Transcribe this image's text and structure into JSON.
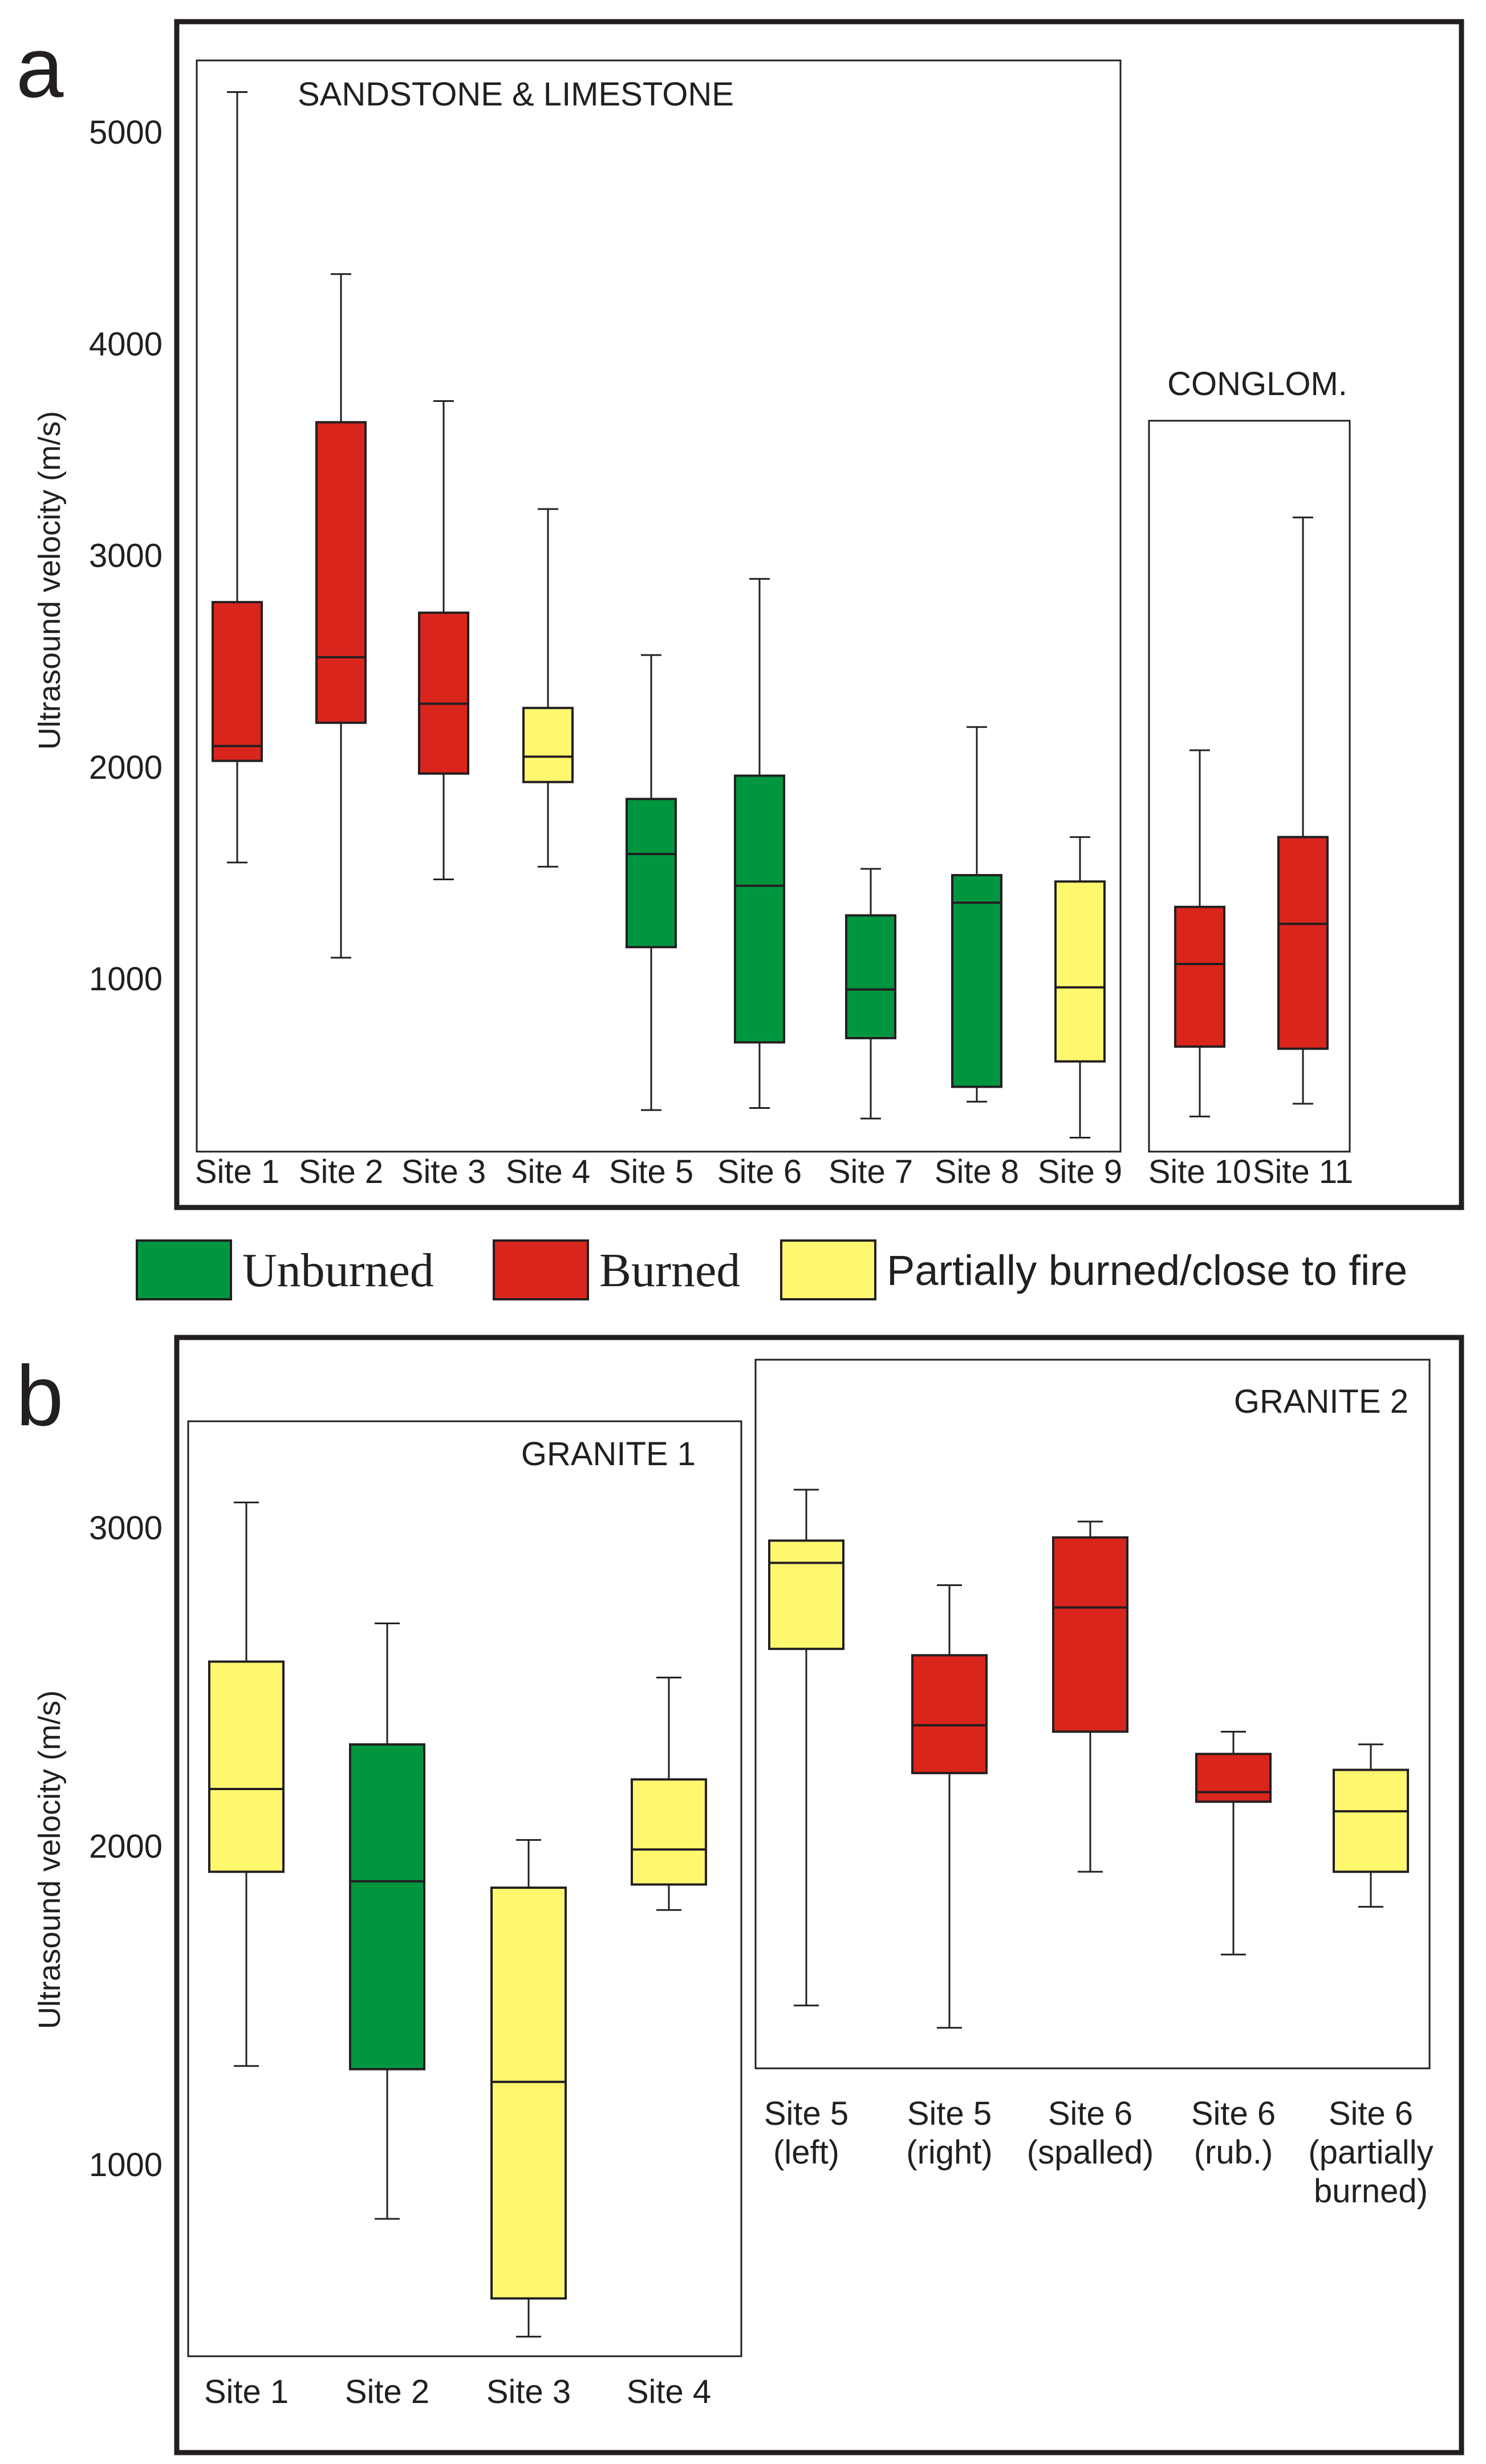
{
  "colors": {
    "Unburned": "#009640",
    "Burned": "#da251d",
    "Partially burned/close to fire": "#fff86f",
    "stroke": "#231f20"
  },
  "legend": {
    "unburned": "Unburned",
    "burned": "Burned",
    "partial": "Partially burned/close to fire"
  },
  "chart_data": [
    {
      "panel": "a",
      "type": "box",
      "ylabel": "Ultrasound velocity (m/s)",
      "yticks": [
        1000,
        2000,
        3000,
        4000,
        5000
      ],
      "ylim": [
        180,
        5500
      ],
      "groups": [
        {
          "title": "SANDSTONE & LIMESTONE",
          "boxes": [
            {
              "label": "Site 1",
              "status": "Burned",
              "whisker_low": 1550,
              "q1": 2030,
              "median": 2100,
              "q3": 2780,
              "whisker_high": 5190
            },
            {
              "label": "Site 2",
              "status": "Burned",
              "whisker_low": 1100,
              "q1": 2210,
              "median": 2520,
              "q3": 3630,
              "whisker_high": 4330
            },
            {
              "label": "Site 3",
              "status": "Burned",
              "whisker_low": 1470,
              "q1": 1970,
              "median": 2300,
              "q3": 2730,
              "whisker_high": 3730
            },
            {
              "label": "Site 4",
              "status": "Partially burned/close to fire",
              "whisker_low": 1530,
              "q1": 1930,
              "median": 2050,
              "q3": 2280,
              "whisker_high": 3220
            },
            {
              "label": "Site 5",
              "status": "Unburned",
              "whisker_low": 380,
              "q1": 1150,
              "median": 1590,
              "q3": 1850,
              "whisker_high": 2530
            },
            {
              "label": "Site 6",
              "status": "Unburned",
              "whisker_low": 390,
              "q1": 700,
              "median": 1440,
              "q3": 1960,
              "whisker_high": 2890
            },
            {
              "label": "Site 7",
              "status": "Unburned",
              "whisker_low": 340,
              "q1": 720,
              "median": 950,
              "q3": 1300,
              "whisker_high": 1520
            },
            {
              "label": "Site 8",
              "status": "Unburned",
              "whisker_low": 420,
              "q1": 490,
              "median": 1360,
              "q3": 1490,
              "whisker_high": 2190
            },
            {
              "label": "Site 9",
              "status": "Partially burned/close to fire",
              "whisker_low": 250,
              "q1": 610,
              "median": 960,
              "q3": 1460,
              "whisker_high": 1670
            }
          ]
        },
        {
          "title": "CONGLOM.",
          "boxes": [
            {
              "label": "Site 10",
              "status": "Burned",
              "whisker_low": 350,
              "q1": 680,
              "median": 1070,
              "q3": 1340,
              "whisker_high": 2080
            },
            {
              "label": "Site 11",
              "status": "Burned",
              "whisker_low": 410,
              "q1": 670,
              "median": 1260,
              "q3": 1670,
              "whisker_high": 3180
            }
          ]
        }
      ]
    },
    {
      "panel": "b",
      "type": "box",
      "ylabel": "Ultrasound velocity (m/s)",
      "yticks": [
        1000,
        2000,
        3000
      ],
      "ylim": [
        400,
        3550
      ],
      "groups": [
        {
          "title": "GRANITE 1",
          "boxes": [
            {
              "label": [
                "Site 1"
              ],
              "status": "Partially burned/close to fire",
              "whisker_low": 1310,
              "q1": 1920,
              "median": 2180,
              "q3": 2580,
              "whisker_high": 3080
            },
            {
              "label": [
                "Site 2"
              ],
              "status": "Unburned",
              "whisker_low": 830,
              "q1": 1300,
              "median": 1890,
              "q3": 2320,
              "whisker_high": 2700
            },
            {
              "label": [
                "Site 3"
              ],
              "status": "Partially burned/close to fire",
              "whisker_low": 460,
              "q1": 580,
              "median": 1260,
              "q3": 1870,
              "whisker_high": 2020
            },
            {
              "label": [
                "Site 4"
              ],
              "status": "Partially burned/close to fire",
              "whisker_low": 1800,
              "q1": 1880,
              "median": 1990,
              "q3": 2210,
              "whisker_high": 2530
            }
          ]
        },
        {
          "title": "GRANITE 2",
          "boxes": [
            {
              "label": [
                "Site 5",
                "(left)"
              ],
              "status": "Partially burned/close to fire",
              "whisker_low": 1500,
              "q1": 2620,
              "median": 2890,
              "q3": 2960,
              "whisker_high": 3120
            },
            {
              "label": [
                "Site 5",
                "(right)"
              ],
              "status": "Burned",
              "whisker_low": 1430,
              "q1": 2230,
              "median": 2380,
              "q3": 2600,
              "whisker_high": 2820
            },
            {
              "label": [
                "Site 6",
                "(spalled)"
              ],
              "status": "Burned",
              "whisker_low": 1920,
              "q1": 2360,
              "median": 2750,
              "q3": 2970,
              "whisker_high": 3020
            },
            {
              "label": [
                "Site 6",
                "(rub.)"
              ],
              "status": "Burned",
              "whisker_low": 1660,
              "q1": 2140,
              "median": 2170,
              "q3": 2290,
              "whisker_high": 2360
            },
            {
              "label": [
                "Site 6",
                "(partially",
                "burned)"
              ],
              "status": "Partially burned/close to fire",
              "whisker_low": 1810,
              "q1": 1920,
              "median": 2110,
              "q3": 2240,
              "whisker_high": 2320
            }
          ]
        }
      ]
    }
  ]
}
